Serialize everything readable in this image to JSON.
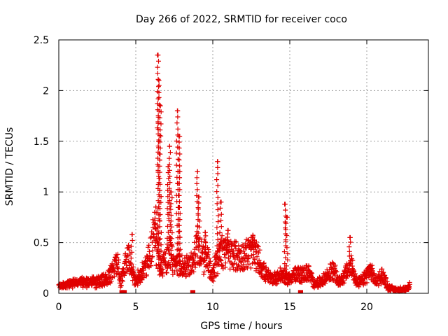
{
  "colors": {
    "series": "#e00000",
    "axis": "#000000",
    "grid": "#a0a0a0"
  },
  "chart_data": {
    "type": "scatter",
    "title": "Day 266 of 2022, SRMTID for receiver coco",
    "xlabel": "GPS time / hours",
    "ylabel": "SRMTID / TECUs",
    "xlim": [
      0,
      24
    ],
    "ylim": [
      0,
      2.5
    ],
    "xticks": [
      0,
      5,
      10,
      15,
      20
    ],
    "yticks": [
      0,
      0.5,
      1,
      1.5,
      2,
      2.5
    ],
    "ytick_labels": [
      "0",
      "0.5",
      "1",
      "1.5",
      "2",
      "2.5"
    ],
    "grid": true,
    "marker": "plus",
    "series": [
      {
        "name": "SRMTID",
        "envelope_x": [
          0,
          0.5,
          1,
          1.5,
          2,
          2.5,
          3,
          3.3,
          3.6,
          3.8,
          4.0,
          4.3,
          4.5,
          4.8,
          5.0,
          5.3,
          5.6,
          5.8,
          6.0,
          6.2,
          6.4,
          6.6,
          6.8,
          7.0,
          7.2,
          7.4,
          7.6,
          7.8,
          8.0,
          8.2,
          8.5,
          8.8,
          9.0,
          9.2,
          9.4,
          9.6,
          9.8,
          10.0,
          10.3,
          10.6,
          11.0,
          11.4,
          11.8,
          12.2,
          12.6,
          13.0,
          13.4,
          13.8,
          14.2,
          14.6,
          14.8,
          15.0,
          15.4,
          15.8,
          16.2,
          16.6,
          17.0,
          17.4,
          17.8,
          18.2,
          18.6,
          19.0,
          19.4,
          19.8,
          20.2,
          20.6,
          21.0,
          21.4,
          21.8,
          22.2,
          22.6,
          22.8
        ],
        "envelope_y": [
          0.09,
          0.1,
          0.11,
          0.12,
          0.12,
          0.12,
          0.14,
          0.18,
          0.28,
          0.36,
          0.12,
          0.3,
          0.38,
          0.2,
          0.14,
          0.2,
          0.28,
          0.35,
          0.45,
          0.65,
          0.4,
          0.3,
          0.32,
          0.35,
          0.5,
          0.35,
          0.3,
          0.32,
          0.3,
          0.28,
          0.32,
          0.38,
          0.55,
          0.4,
          0.35,
          0.45,
          0.28,
          0.22,
          0.35,
          0.45,
          0.42,
          0.4,
          0.38,
          0.42,
          0.45,
          0.35,
          0.2,
          0.15,
          0.18,
          0.2,
          0.15,
          0.17,
          0.2,
          0.2,
          0.22,
          0.1,
          0.12,
          0.18,
          0.25,
          0.12,
          0.2,
          0.3,
          0.1,
          0.15,
          0.25,
          0.12,
          0.2,
          0.06,
          0.04,
          0.04,
          0.04,
          0.08
        ],
        "spike_x": [
          4.75,
          6.3,
          6.45,
          6.5,
          6.6,
          7.1,
          7.2,
          7.3,
          7.7,
          7.8,
          7.85,
          9.0,
          9.1,
          9.5,
          10.3,
          10.5,
          11.0,
          12.6,
          14.7,
          14.8,
          18.9
        ],
        "spike_y": [
          0.58,
          0.85,
          2.35,
          2.1,
          1.85,
          1.25,
          1.45,
          1.0,
          1.8,
          1.55,
          1.2,
          1.2,
          0.95,
          0.6,
          1.3,
          0.9,
          0.62,
          0.55,
          0.88,
          0.75,
          0.55
        ],
        "zero_x": [
          4.1,
          4.25,
          8.7,
          15.7
        ]
      }
    ]
  }
}
